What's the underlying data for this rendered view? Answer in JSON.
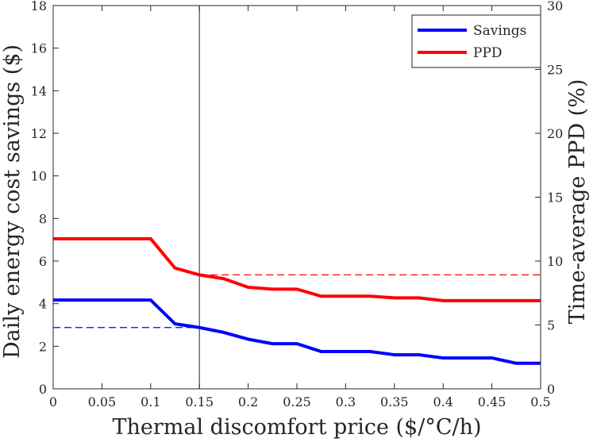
{
  "chart_data": {
    "type": "line",
    "xlabel": "Thermal discomfort price ($/°C/h)",
    "ylabel": "Daily energy cost savings ($)",
    "y2label": "Time-average PPD (%)",
    "xlim": [
      0,
      0.5
    ],
    "ylim": [
      0,
      18
    ],
    "y2lim": [
      0,
      30
    ],
    "x_ticks": [
      0,
      0.05,
      0.1,
      0.15,
      0.2,
      0.25,
      0.3,
      0.35,
      0.4,
      0.45,
      0.5
    ],
    "x_tick_labels": [
      "0",
      "0.05",
      "0.1",
      "0.15",
      "0.2",
      "0.25",
      "0.3",
      "0.35",
      "0.4",
      "0.45",
      "0.5"
    ],
    "y_ticks": [
      0,
      2,
      4,
      6,
      8,
      10,
      12,
      14,
      16,
      18
    ],
    "y_tick_labels": [
      "0",
      "2",
      "4",
      "6",
      "8",
      "10",
      "12",
      "14",
      "16",
      "18"
    ],
    "y2_ticks": [
      0,
      5,
      10,
      15,
      20,
      25,
      30
    ],
    "y2_tick_labels": [
      "0",
      "5",
      "10",
      "15",
      "20",
      "25",
      "30"
    ],
    "legend_position": "top-right",
    "grid": false,
    "series": [
      {
        "name": "Savings",
        "axis": "left",
        "color": "#0000ff",
        "x": [
          0,
          0.025,
          0.05,
          0.075,
          0.1,
          0.125,
          0.15,
          0.175,
          0.2,
          0.225,
          0.25,
          0.275,
          0.3,
          0.325,
          0.35,
          0.375,
          0.4,
          0.425,
          0.45,
          0.475,
          0.5
        ],
        "values": [
          4.17,
          4.17,
          4.17,
          4.17,
          4.17,
          3.05,
          2.88,
          2.65,
          2.33,
          2.12,
          2.12,
          1.75,
          1.75,
          1.75,
          1.6,
          1.6,
          1.45,
          1.45,
          1.45,
          1.2,
          1.2
        ]
      },
      {
        "name": "PPD",
        "axis": "right",
        "color": "#ff0000",
        "x": [
          0,
          0.025,
          0.05,
          0.075,
          0.1,
          0.125,
          0.15,
          0.175,
          0.2,
          0.225,
          0.25,
          0.275,
          0.3,
          0.325,
          0.35,
          0.375,
          0.4,
          0.425,
          0.45,
          0.475,
          0.5
        ],
        "values": [
          11.75,
          11.75,
          11.75,
          11.75,
          11.75,
          9.45,
          8.92,
          8.62,
          7.95,
          7.8,
          7.8,
          7.25,
          7.25,
          7.25,
          7.12,
          7.12,
          6.9,
          6.9,
          6.9,
          6.9,
          6.9
        ]
      }
    ],
    "annotations": [
      {
        "type": "vline",
        "x": 0.15,
        "color": "#262626"
      },
      {
        "type": "hline",
        "axis": "left",
        "y": 2.88,
        "x_from": 0,
        "x_to": 0.15,
        "dashed": true,
        "color": "#0000ff"
      },
      {
        "type": "hline",
        "axis": "right",
        "y": 8.92,
        "x_from": 0.15,
        "x_to": 0.5,
        "dashed": true,
        "color": "#ff0000"
      }
    ]
  }
}
